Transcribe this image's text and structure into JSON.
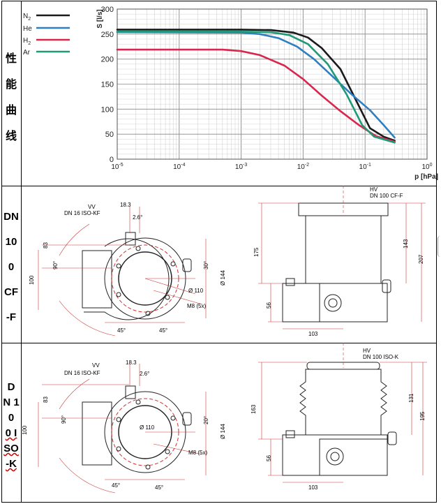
{
  "rows": [
    {
      "label_chars": [
        "性",
        "能",
        "曲",
        "线"
      ]
    },
    {
      "label_chars": [
        "DN",
        "10",
        "0",
        "CF",
        "-F"
      ]
    },
    {
      "label_chars": [
        "D",
        "N 1",
        "0",
        "0 I",
        "SO",
        "-K"
      ]
    }
  ],
  "chart_data": {
    "type": "line",
    "title": "",
    "xlabel": "p [hPa]",
    "ylabel": "S [l/s]",
    "xscale": "log",
    "xlim": [
      1e-05,
      1
    ],
    "ylim": [
      0,
      300
    ],
    "x_tick_labels": [
      "10-5",
      "10-4",
      "10-3",
      "10-2",
      "10-1",
      "100"
    ],
    "y_tick_labels": [
      "0",
      "50",
      "100",
      "150",
      "200",
      "250",
      "300"
    ],
    "y_ticks": [
      0,
      50,
      100,
      150,
      200,
      250,
      300
    ],
    "legend_position": "top-left",
    "series": [
      {
        "name": "N2",
        "color": "#1a1a1a",
        "points": [
          [
            1e-05,
            259
          ],
          [
            0.001,
            259
          ],
          [
            0.003,
            258
          ],
          [
            0.007,
            253
          ],
          [
            0.012,
            243
          ],
          [
            0.02,
            222
          ],
          [
            0.04,
            180
          ],
          [
            0.07,
            120
          ],
          [
            0.12,
            62
          ],
          [
            0.2,
            45
          ],
          [
            0.3,
            37
          ]
        ]
      },
      {
        "name": "He",
        "color": "#2d7fc1",
        "points": [
          [
            1e-05,
            254
          ],
          [
            0.001,
            253
          ],
          [
            0.002,
            250
          ],
          [
            0.004,
            242
          ],
          [
            0.008,
            225
          ],
          [
            0.015,
            200
          ],
          [
            0.03,
            165
          ],
          [
            0.06,
            130
          ],
          [
            0.12,
            98
          ],
          [
            0.2,
            68
          ],
          [
            0.3,
            43
          ]
        ]
      },
      {
        "name": "H2",
        "color": "#d8264d",
        "points": [
          [
            1e-05,
            219
          ],
          [
            0.0005,
            219
          ],
          [
            0.001,
            216
          ],
          [
            0.002,
            208
          ],
          [
            0.005,
            187
          ],
          [
            0.01,
            160
          ],
          [
            0.02,
            127
          ],
          [
            0.04,
            96
          ],
          [
            0.08,
            68
          ],
          [
            0.15,
            46
          ],
          [
            0.3,
            35
          ]
        ]
      },
      {
        "name": "Ar",
        "color": "#1f9a76",
        "points": [
          [
            1e-05,
            255
          ],
          [
            0.001,
            255
          ],
          [
            0.003,
            254
          ],
          [
            0.006,
            248
          ],
          [
            0.012,
            230
          ],
          [
            0.025,
            190
          ],
          [
            0.05,
            130
          ],
          [
            0.09,
            68
          ],
          [
            0.14,
            45
          ],
          [
            0.3,
            33
          ]
        ]
      }
    ]
  },
  "drawings": [
    {
      "top_view": {
        "vv": "VV",
        "flange": "DN 16 ISO-KF",
        "dims": [
          "18.3",
          "2.6°",
          "83",
          "90°",
          "100",
          "30°",
          "Ø 110",
          "Ø 144",
          "M8 (5x)",
          "45°",
          "45°"
        ]
      },
      "side_view": {
        "hv": "HV",
        "flange": "DN 100 CF-F",
        "dims": [
          "175",
          "143",
          "207",
          "56",
          "103"
        ]
      }
    },
    {
      "top_view": {
        "vv": "VV",
        "flange": "DN 16 ISO-KF",
        "dims": [
          "18.3",
          "2.6°",
          "83",
          "90°",
          "100",
          "20°",
          "Ø 110",
          "Ø 144",
          "M8 (5x)",
          "45°",
          "45°"
        ]
      },
      "side_view": {
        "hv": "HV",
        "flange": "DN 100 ISO-K",
        "dims": [
          "163",
          "131",
          "195",
          "56",
          "103"
        ]
      }
    }
  ]
}
